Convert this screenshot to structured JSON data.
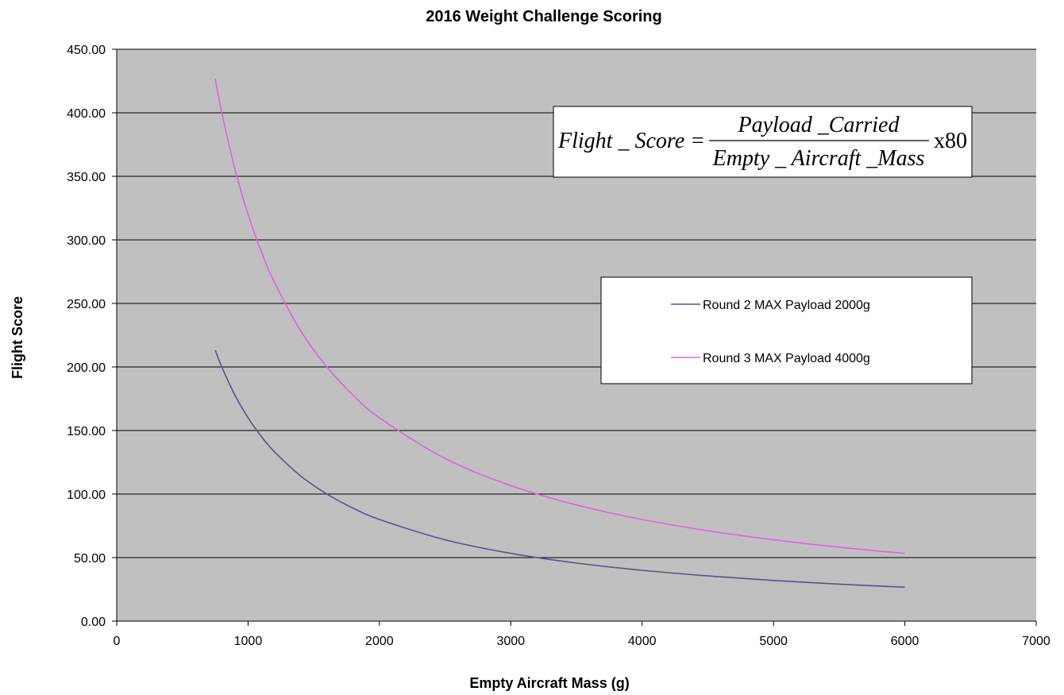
{
  "chart_data": {
    "type": "line",
    "title": "2016 Weight Challenge  Scoring",
    "xlabel": "Empty Aircraft Mass (g)",
    "ylabel": "Flight  Score",
    "xlim": [
      0,
      7000
    ],
    "ylim": [
      0,
      450
    ],
    "x_ticks": [
      "0",
      "1000",
      "2000",
      "3000",
      "4000",
      "5000",
      "6000",
      "7000"
    ],
    "y_ticks": [
      "0.00",
      "50.00",
      "100.00",
      "150.00",
      "200.00",
      "250.00",
      "300.00",
      "350.00",
      "400.00",
      "450.00"
    ],
    "grid": true,
    "plot_background": "#c0c0c0",
    "legend_position": "right-middle",
    "series": [
      {
        "name": "Round 2 MAX Payload 2000g",
        "color": "#55558a",
        "x": [
          750,
          800,
          900,
          1000,
          1100,
          1200,
          1400,
          1600,
          1800,
          2000,
          2500,
          3000,
          3500,
          4000,
          4500,
          5000,
          5500,
          6000
        ],
        "y": [
          213.33,
          200.0,
          177.78,
          160.0,
          145.45,
          133.33,
          114.29,
          100.0,
          88.89,
          80.0,
          64.0,
          53.33,
          45.71,
          40.0,
          35.56,
          32.0,
          29.09,
          26.67
        ]
      },
      {
        "name": "Round 3 MAX Payload 4000g",
        "color": "#e060e0",
        "x": [
          750,
          800,
          900,
          1000,
          1100,
          1200,
          1400,
          1600,
          1800,
          2000,
          2500,
          3000,
          3500,
          4000,
          4500,
          5000,
          5500,
          6000
        ],
        "y": [
          426.67,
          400.0,
          355.56,
          320.0,
          290.91,
          266.67,
          228.57,
          200.0,
          177.78,
          160.0,
          128.0,
          106.67,
          91.43,
          80.0,
          71.11,
          64.0,
          58.18,
          53.33
        ]
      }
    ],
    "annotation": {
      "lhs": "Flight _ Score =",
      "numerator": "Payload _Carried",
      "denominator": "Empty _ Aircraft _Mass",
      "multiplier": "x80"
    }
  }
}
